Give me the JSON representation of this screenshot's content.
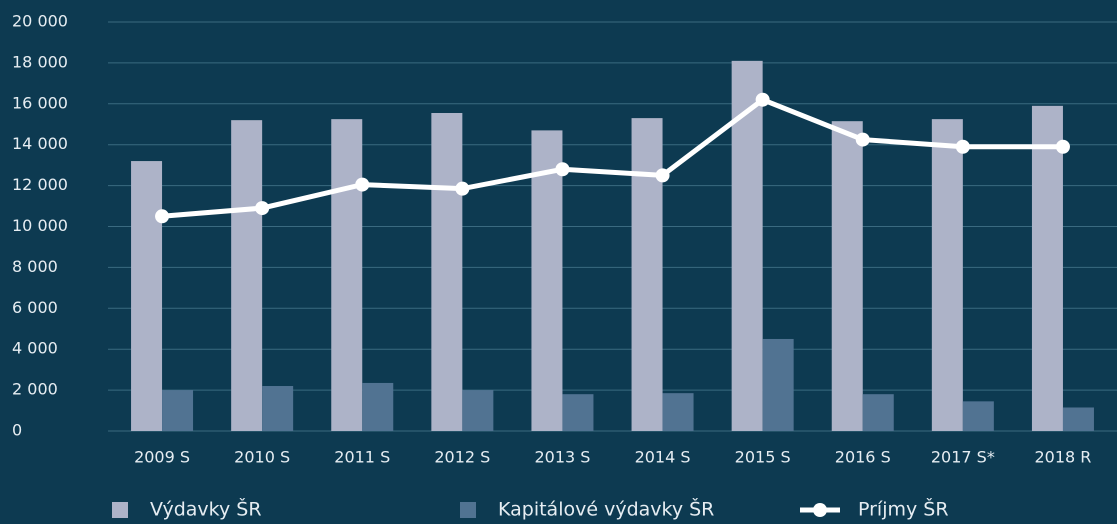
{
  "chart_data": {
    "type": "bar",
    "categories": [
      "2009 S",
      "2010 S",
      "2011 S",
      "2012 S",
      "2013 S",
      "2014 S",
      "2015 S",
      "2016 S",
      "2017 S*",
      "2018 R"
    ],
    "series": [
      {
        "name": "Výdavky ŠR",
        "type": "bar",
        "color": "#adb3c8",
        "values": [
          13200,
          15200,
          15250,
          15550,
          14700,
          15300,
          18100,
          15150,
          15250,
          15900
        ]
      },
      {
        "name": "Kapitálové výdavky ŠR",
        "type": "bar",
        "color": "#517392",
        "values": [
          2000,
          2200,
          2350,
          2000,
          1800,
          1850,
          4500,
          1800,
          1450,
          1150
        ]
      },
      {
        "name": "Príjmy ŠR",
        "type": "line",
        "color": "#ffffff",
        "values": [
          10500,
          10900,
          12050,
          11850,
          12800,
          12500,
          16200,
          14250,
          13900,
          13900
        ]
      }
    ],
    "ylim": [
      0,
      20000
    ],
    "yticks": [
      0,
      {
        "value": 2000,
        "label": "2 000"
      },
      {
        "value": 4000,
        "label": "4 000"
      },
      {
        "value": 6000,
        "label": "6 000"
      },
      {
        "value": 8000,
        "label": "8 000"
      },
      {
        "value": 10000,
        "label": "10 000"
      },
      {
        "value": 12000,
        "label": "12 000"
      },
      {
        "value": 14000,
        "label": "14 000"
      },
      {
        "value": 16000,
        "label": "16 000"
      },
      {
        "value": 18000,
        "label": "18 000"
      },
      {
        "value": 20000,
        "label": "20 000"
      }
    ],
    "grid": true,
    "legend": "bottom"
  }
}
